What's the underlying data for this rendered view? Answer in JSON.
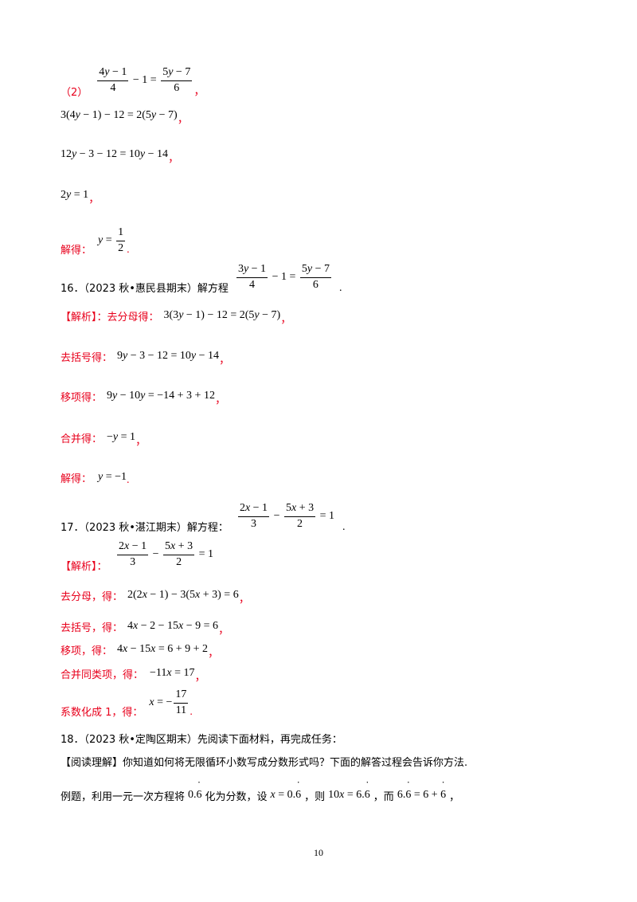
{
  "p2": {
    "label": "（2）",
    "tail": "，"
  },
  "s1_tail": "，",
  "s2_tail": "，",
  "s3_tail": "，",
  "sol15": {
    "label": "解得：",
    "tail": "."
  },
  "q16": {
    "head": "16．（2023 秋•惠民县期末）解方程",
    "tail": "."
  },
  "a16": {
    "step1": {
      "label": "【解析】：去分母得：",
      "tail": "，"
    },
    "step2": {
      "label": "去括号得：",
      "tail": "，"
    },
    "step3": {
      "label": "移项得：",
      "tail": "，"
    },
    "step4": {
      "label": "合并得：",
      "tail": "，"
    },
    "step5": {
      "label": "解得：",
      "tail": "."
    }
  },
  "q17": {
    "head": "17．（2023 秋•湛江期末）解方程：",
    "tail": "."
  },
  "a17": {
    "label": "【解析】：",
    "step1": {
      "label": "去分母，得：",
      "tail": "，"
    },
    "step2": {
      "label": "去括号，得：",
      "tail": "，"
    },
    "step3": {
      "label": "移项，得：",
      "tail": "，"
    },
    "step4": {
      "label": "合并同类项，得：",
      "tail": "，"
    },
    "step5": {
      "label": "系数化成 1，得：",
      "tail": "."
    }
  },
  "q18": {
    "head": "18．（2023 秋•定陶区期末）先阅读下面材料，再完成任务：",
    "reading": "【阅读理解】你知道如何将无限循环小数写成分数形式吗？下面的解答过程会告诉你方法.",
    "ex1": "例题，利用一元一次方程将",
    "ex2": "化为分数，设",
    "ex3": "，则",
    "ex4": "，而",
    "ex5": "，"
  },
  "page_number": "10"
}
